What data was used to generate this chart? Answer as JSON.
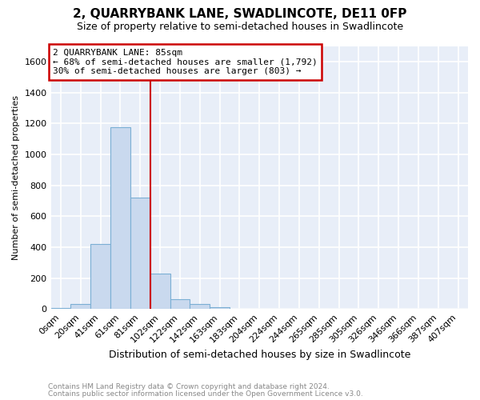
{
  "title": "2, QUARRYBANK LANE, SWADLINCOTE, DE11 0FP",
  "subtitle": "Size of property relative to semi-detached houses in Swadlincote",
  "xlabel": "Distribution of semi-detached houses by size in Swadlincote",
  "ylabel": "Number of semi-detached properties",
  "footnote1": "Contains HM Land Registry data © Crown copyright and database right 2024.",
  "footnote2": "Contains public sector information licensed under the Open Government Licence v3.0.",
  "bar_labels": [
    "0sqm",
    "20sqm",
    "41sqm",
    "61sqm",
    "81sqm",
    "102sqm",
    "122sqm",
    "142sqm",
    "163sqm",
    "183sqm",
    "204sqm",
    "224sqm",
    "244sqm",
    "265sqm",
    "285sqm",
    "305sqm",
    "326sqm",
    "346sqm",
    "366sqm",
    "387sqm",
    "407sqm"
  ],
  "bar_values": [
    8,
    30,
    420,
    1175,
    720,
    230,
    65,
    30,
    12,
    0,
    0,
    0,
    0,
    0,
    0,
    0,
    0,
    0,
    0,
    0,
    0
  ],
  "bar_color": "#c9d9ee",
  "bar_edge_color": "#7bafd4",
  "vline_x": 4.5,
  "highlight_label": "2 QUARRYBANK LANE: 85sqm",
  "annotation_line1": "← 68% of semi-detached houses are smaller (1,792)",
  "annotation_line2": "30% of semi-detached houses are larger (803) →",
  "vline_color": "#cc0000",
  "annotation_box_facecolor": "#ffffff",
  "annotation_box_edgecolor": "#cc0000",
  "ylim": [
    0,
    1700
  ],
  "yticks": [
    0,
    200,
    400,
    600,
    800,
    1000,
    1200,
    1400,
    1600
  ],
  "figure_facecolor": "#ffffff",
  "plot_facecolor": "#e8eef8",
  "grid_color": "#ffffff",
  "title_fontsize": 11,
  "subtitle_fontsize": 9,
  "ylabel_fontsize": 8,
  "xlabel_fontsize": 9,
  "tick_fontsize": 8,
  "annotation_fontsize": 8,
  "footnote_color": "#888888",
  "footnote_fontsize": 6.5
}
